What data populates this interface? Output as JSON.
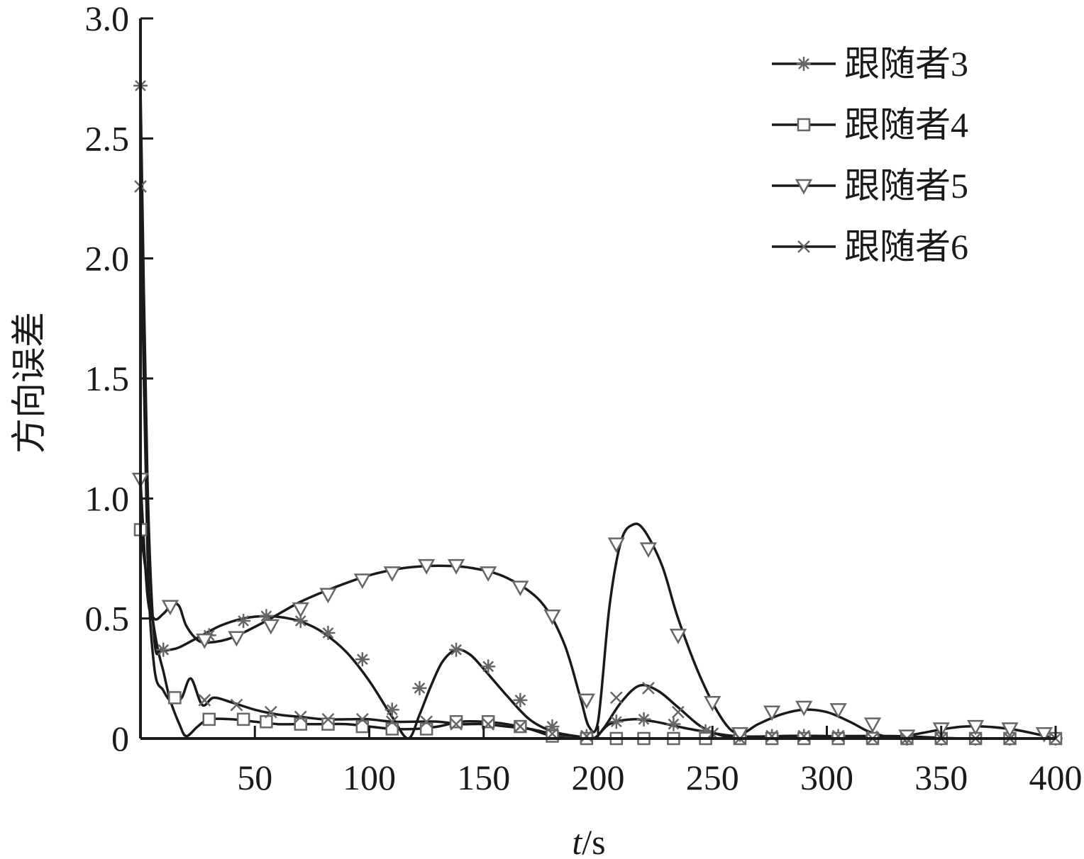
{
  "chart_data": {
    "type": "line",
    "title": "",
    "xlabel_italic": "t",
    "xlabel_unit": "/s",
    "ylabel": "方向误差",
    "xlim": [
      0,
      400
    ],
    "ylim": [
      0,
      3.0
    ],
    "x_ticks": [
      50,
      100,
      150,
      200,
      250,
      300,
      350,
      400
    ],
    "x_tick_labels": [
      "50",
      "100",
      "150",
      "200",
      "250",
      "300",
      "350",
      "400"
    ],
    "y_ticks": [
      0,
      0.5,
      1.0,
      1.5,
      2.0,
      2.5,
      3.0
    ],
    "y_tick_labels": [
      "0",
      "0.5",
      "1.0",
      "1.5",
      "2.0",
      "2.5",
      "3.0"
    ],
    "grid": false,
    "legend_position": "top-right",
    "series": [
      {
        "name": "跟随者3",
        "marker": "asterisk",
        "x": [
          0,
          3,
          6,
          9,
          13,
          17,
          25,
          35,
          45,
          55,
          65,
          72,
          80,
          90,
          100,
          110,
          117,
          122,
          127,
          132,
          138,
          144,
          150,
          160,
          170,
          180,
          190,
          198,
          205,
          215,
          225,
          240,
          260,
          280,
          300,
          330,
          360,
          400
        ],
        "y": [
          2.72,
          1.1,
          0.42,
          0.37,
          0.37,
          0.38,
          0.42,
          0.47,
          0.5,
          0.51,
          0.5,
          0.48,
          0.44,
          0.36,
          0.24,
          0.09,
          0.0,
          0.1,
          0.22,
          0.32,
          0.37,
          0.35,
          0.29,
          0.18,
          0.08,
          0.03,
          0.01,
          0.0,
          0.06,
          0.08,
          0.07,
          0.04,
          0.01,
          0.01,
          0.01,
          0.01,
          0.0,
          0.0
        ],
        "marker_x": [
          0,
          10,
          30,
          45,
          55,
          70,
          82,
          97,
          110,
          122,
          138,
          152,
          166,
          180,
          195,
          208,
          220,
          233,
          247,
          262,
          276,
          290,
          305,
          320,
          335,
          350,
          365,
          380,
          400
        ],
        "marker_y": [
          2.72,
          0.37,
          0.43,
          0.49,
          0.51,
          0.49,
          0.44,
          0.33,
          0.12,
          0.21,
          0.37,
          0.3,
          0.16,
          0.05,
          0.01,
          0.07,
          0.08,
          0.06,
          0.03,
          0.01,
          0.01,
          0.01,
          0.01,
          0.01,
          0.0,
          0.0,
          0.0,
          0.0,
          0.0
        ]
      },
      {
        "name": "跟随者4",
        "marker": "square",
        "x": [
          0,
          3,
          7,
          10,
          13,
          17,
          20,
          25,
          30,
          40,
          50,
          60,
          70,
          80,
          90,
          100,
          110,
          120,
          130,
          140,
          150,
          160,
          170,
          180,
          190,
          200,
          220,
          240,
          260,
          300,
          350,
          400
        ],
        "y": [
          0.87,
          0.65,
          0.4,
          0.28,
          0.16,
          0.06,
          0.01,
          0.05,
          0.08,
          0.08,
          0.07,
          0.06,
          0.06,
          0.06,
          0.06,
          0.05,
          0.04,
          0.04,
          0.05,
          0.07,
          0.07,
          0.06,
          0.04,
          0.01,
          0.0,
          0.0,
          0.0,
          0.0,
          0.0,
          0.0,
          0.0,
          0.0
        ],
        "marker_x": [
          0,
          15,
          30,
          45,
          55,
          70,
          82,
          97,
          110,
          125,
          138,
          152,
          166,
          180,
          195,
          208,
          220,
          233,
          247,
          262,
          276,
          290,
          305,
          320,
          335,
          350,
          365,
          380,
          400
        ],
        "marker_y": [
          0.87,
          0.17,
          0.08,
          0.08,
          0.07,
          0.06,
          0.06,
          0.05,
          0.04,
          0.04,
          0.07,
          0.07,
          0.05,
          0.01,
          0.0,
          0.0,
          0.0,
          0.0,
          0.0,
          0.0,
          0.0,
          0.0,
          0.0,
          0.0,
          0.0,
          0.0,
          0.0,
          0.0,
          0.0
        ]
      },
      {
        "name": "跟随者5",
        "marker": "triangle-down",
        "x": [
          0,
          3,
          6,
          10,
          14,
          17,
          20,
          25,
          30,
          40,
          55,
          70,
          85,
          100,
          115,
          130,
          145,
          160,
          175,
          185,
          192,
          196,
          200,
          205,
          210,
          215,
          220,
          228,
          235,
          245,
          255,
          262,
          270,
          280,
          290,
          300,
          310,
          318,
          325,
          330,
          340,
          360,
          380,
          400
        ],
        "y": [
          1.08,
          0.6,
          0.5,
          0.52,
          0.56,
          0.55,
          0.47,
          0.41,
          0.4,
          0.42,
          0.49,
          0.57,
          0.63,
          0.68,
          0.71,
          0.72,
          0.71,
          0.67,
          0.57,
          0.4,
          0.18,
          0.05,
          0.07,
          0.55,
          0.82,
          0.89,
          0.87,
          0.72,
          0.5,
          0.25,
          0.07,
          0.02,
          0.06,
          0.1,
          0.12,
          0.11,
          0.07,
          0.03,
          0.01,
          0.0,
          0.02,
          0.05,
          0.04,
          0.0
        ],
        "marker_x": [
          0,
          13,
          28,
          42,
          57,
          70,
          82,
          97,
          110,
          125,
          138,
          152,
          166,
          180,
          195,
          208,
          222,
          235,
          250,
          262,
          276,
          290,
          305,
          320,
          335,
          350,
          365,
          380,
          395
        ],
        "marker_y": [
          1.08,
          0.55,
          0.41,
          0.42,
          0.47,
          0.54,
          0.6,
          0.66,
          0.69,
          0.72,
          0.72,
          0.69,
          0.63,
          0.51,
          0.16,
          0.81,
          0.79,
          0.43,
          0.15,
          0.02,
          0.11,
          0.13,
          0.12,
          0.06,
          0.01,
          0.04,
          0.05,
          0.04,
          0.02
        ]
      },
      {
        "name": "跟随者6",
        "marker": "x",
        "x": [
          0,
          3,
          6,
          10,
          14,
          18,
          22,
          27,
          32,
          40,
          50,
          60,
          70,
          80,
          90,
          100,
          110,
          120,
          130,
          140,
          150,
          160,
          170,
          180,
          190,
          198,
          203,
          210,
          218,
          226,
          235,
          245,
          255,
          265,
          280,
          300,
          330,
          360,
          400
        ],
        "y": [
          2.3,
          0.8,
          0.3,
          0.2,
          0.15,
          0.17,
          0.25,
          0.14,
          0.17,
          0.15,
          0.12,
          0.1,
          0.09,
          0.08,
          0.08,
          0.08,
          0.07,
          0.07,
          0.07,
          0.06,
          0.06,
          0.05,
          0.04,
          0.02,
          0.01,
          0.0,
          0.05,
          0.15,
          0.22,
          0.2,
          0.13,
          0.05,
          0.01,
          0.0,
          0.01,
          0.01,
          0.0,
          0.0,
          0.0
        ],
        "marker_x": [
          0,
          28,
          42,
          57,
          70,
          82,
          97,
          110,
          125,
          138,
          152,
          166,
          180,
          195,
          208,
          222,
          235,
          250,
          262,
          276,
          290,
          305,
          320,
          335,
          350,
          365,
          380,
          400
        ],
        "marker_y": [
          2.3,
          0.16,
          0.14,
          0.11,
          0.09,
          0.08,
          0.08,
          0.07,
          0.07,
          0.06,
          0.06,
          0.05,
          0.02,
          0.01,
          0.17,
          0.21,
          0.11,
          0.02,
          0.0,
          0.01,
          0.01,
          0.01,
          0.0,
          0.0,
          0.0,
          0.0,
          0.0,
          0.0
        ]
      }
    ]
  }
}
